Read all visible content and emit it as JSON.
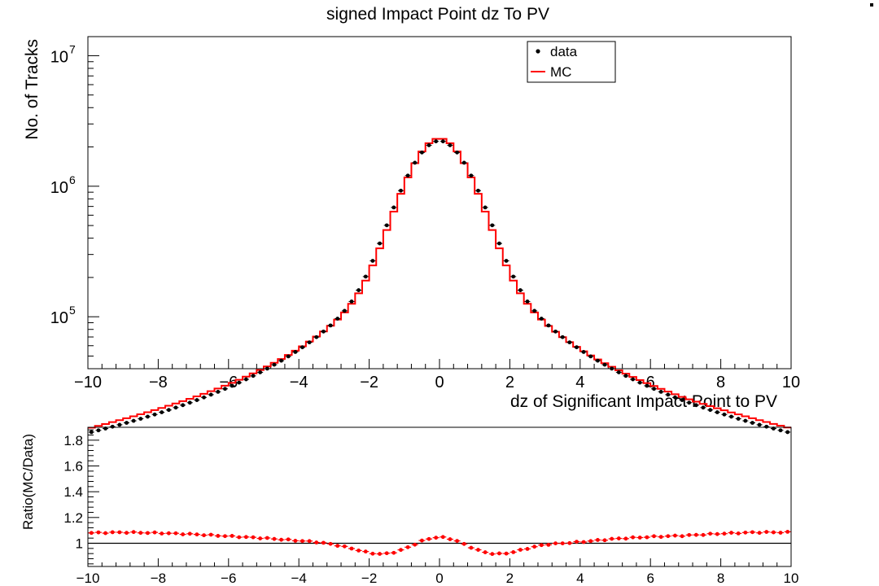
{
  "chart_data": [
    {
      "type": "histogram",
      "title": "signed Impact Point dz To PV",
      "xlabel": "dz of Significant Impact Point to PV",
      "ylabel": "No. of Tracks",
      "xlim": [
        -10,
        10
      ],
      "ylim": [
        40000,
        14000000
      ],
      "yscale": "log",
      "x_ticks": [
        "−10",
        "−8",
        "−6",
        "−4",
        "−2",
        "0",
        "2",
        "4",
        "6",
        "8",
        "10"
      ],
      "y_ticks": [
        {
          "base": "10",
          "exp": "5",
          "value": 100000
        },
        {
          "base": "10",
          "exp": "6",
          "value": 1000000
        },
        {
          "base": "10",
          "exp": "7",
          "value": 10000000
        }
      ],
      "legend": {
        "placement": "top-center",
        "entries": [
          "data",
          "MC"
        ]
      },
      "bins": {
        "count": 100,
        "low": -10,
        "high": 10
      },
      "series": [
        {
          "name": "data",
          "style": "markers",
          "color": "#000000",
          "shape": "gauss_plus_lorentz",
          "params": {
            "A": 1450000,
            "sigma": 0.8,
            "B": 720000,
            "gamma": 1.02,
            "C": 60000,
            "D": 1.0
          }
        },
        {
          "name": "MC",
          "style": "step",
          "color": "#ff0000",
          "shape": "gauss_plus_lorentz_times_ratio",
          "params": {
            "A": 1450000,
            "sigma": 0.8,
            "B": 720000,
            "gamma": 1.02,
            "C": 60000,
            "D": 1.0
          }
        }
      ]
    },
    {
      "type": "scatter",
      "xlabel": "",
      "ylabel": "Ratio(MC/Data)",
      "xlim": [
        -10,
        10
      ],
      "ylim": [
        0.82,
        1.9
      ],
      "x_ticks": [
        "−10",
        "−8",
        "−6",
        "−4",
        "−2",
        "0",
        "2",
        "4",
        "6",
        "8",
        "10"
      ],
      "y_ticks": [
        "1",
        "1.2",
        "1.4",
        "1.6",
        "1.8"
      ],
      "reference_line": 1.0,
      "series": [
        {
          "name": "ratio",
          "color": "#ff0000",
          "points_x": [
            -10,
            -9,
            -8,
            -7,
            -6,
            -5,
            -4,
            -3.5,
            -3,
            -2.5,
            -2,
            -1.6,
            -1.2,
            -0.8,
            -0.4,
            0,
            0.4,
            0.8,
            1.2,
            1.6,
            2,
            2.5,
            3,
            3.5,
            4,
            5,
            6,
            7,
            8,
            9,
            10
          ],
          "points_y": [
            1.08,
            1.085,
            1.08,
            1.07,
            1.055,
            1.04,
            1.02,
            1.01,
            0.99,
            0.96,
            0.925,
            0.915,
            0.935,
            0.98,
            1.03,
            1.05,
            1.03,
            0.98,
            0.935,
            0.915,
            0.925,
            0.96,
            0.99,
            1.0,
            1.01,
            1.035,
            1.05,
            1.06,
            1.075,
            1.085,
            1.085
          ]
        }
      ]
    }
  ]
}
